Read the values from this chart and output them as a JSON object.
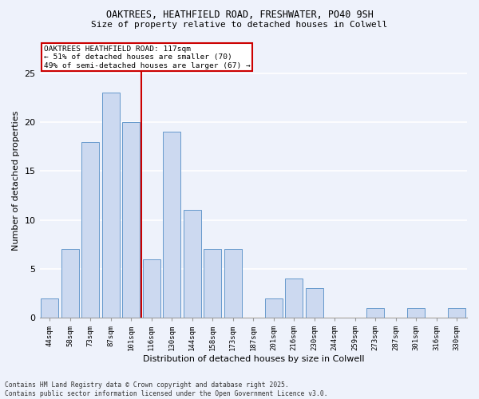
{
  "title1": "OAKTREES, HEATHFIELD ROAD, FRESHWATER, PO40 9SH",
  "title2": "Size of property relative to detached houses in Colwell",
  "xlabel": "Distribution of detached houses by size in Colwell",
  "ylabel": "Number of detached properties",
  "categories": [
    "44sqm",
    "58sqm",
    "73sqm",
    "87sqm",
    "101sqm",
    "116sqm",
    "130sqm",
    "144sqm",
    "158sqm",
    "173sqm",
    "187sqm",
    "201sqm",
    "216sqm",
    "230sqm",
    "244sqm",
    "259sqm",
    "273sqm",
    "287sqm",
    "301sqm",
    "316sqm",
    "330sqm"
  ],
  "values": [
    2,
    7,
    18,
    23,
    20,
    6,
    19,
    11,
    7,
    7,
    0,
    2,
    4,
    3,
    0,
    0,
    1,
    0,
    1,
    0,
    1
  ],
  "bar_color": "#ccd9f0",
  "bar_edge_color": "#6699cc",
  "vline_color": "#cc0000",
  "annotation_text": "OAKTREES HEATHFIELD ROAD: 117sqm\n← 51% of detached houses are smaller (70)\n49% of semi-detached houses are larger (67) →",
  "annotation_box_color": "#ffffff",
  "annotation_box_edge": "#cc0000",
  "background_color": "#eef2fb",
  "grid_color": "#ffffff",
  "footer": "Contains HM Land Registry data © Crown copyright and database right 2025.\nContains public sector information licensed under the Open Government Licence v3.0.",
  "ylim": [
    0,
    28
  ],
  "yticks": [
    0,
    5,
    10,
    15,
    20,
    25
  ]
}
